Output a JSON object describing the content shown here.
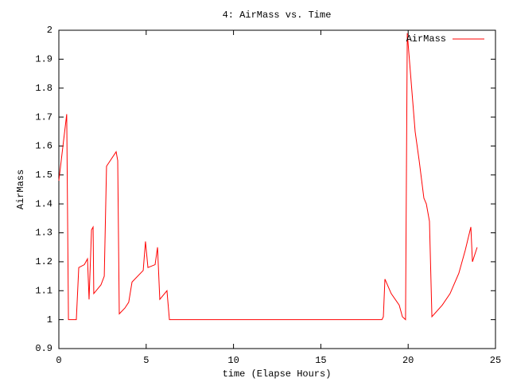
{
  "chart_data": {
    "type": "line",
    "title": "4: AirMass vs. Time",
    "xlabel": "time (Elapse Hours)",
    "ylabel": "AirMass",
    "x": [
      0,
      0.45,
      0.55,
      1.0,
      1.14,
      1.46,
      1.64,
      1.73,
      1.87,
      1.96,
      2.0,
      2.41,
      2.6,
      2.73,
      3.28,
      3.37,
      3.46,
      3.78,
      4.0,
      4.19,
      4.83,
      4.96,
      5.1,
      5.51,
      5.65,
      5.78,
      6.19,
      6.33,
      18.5,
      18.58,
      18.67,
      19.03,
      19.49,
      19.67,
      19.85,
      19.95,
      20.4,
      20.63,
      20.9,
      21.04,
      21.22,
      21.36,
      21.95,
      22.4,
      22.9,
      23.27,
      23.59,
      23.68,
      23.95
    ],
    "series": [
      {
        "name": "AirMass",
        "color": "#ff0000",
        "values": [
          1.48,
          1.71,
          1.0,
          1.0,
          1.18,
          1.19,
          1.21,
          1.07,
          1.31,
          1.32,
          1.09,
          1.12,
          1.15,
          1.53,
          1.58,
          1.55,
          1.02,
          1.04,
          1.06,
          1.13,
          1.17,
          1.27,
          1.18,
          1.19,
          1.25,
          1.07,
          1.1,
          1.0,
          1.0,
          1.01,
          1.14,
          1.09,
          1.05,
          1.01,
          1.0,
          1.99,
          1.65,
          1.55,
          1.42,
          1.4,
          1.34,
          1.01,
          1.05,
          1.09,
          1.16,
          1.24,
          1.32,
          1.2,
          1.25
        ]
      }
    ],
    "xlim": [
      0,
      25
    ],
    "xticks": [
      0,
      5,
      10,
      15,
      20,
      25
    ],
    "ylim": [
      0.9,
      2
    ],
    "yticks": [
      0.9,
      1,
      1.1,
      1.2,
      1.3,
      1.4,
      1.5,
      1.6,
      1.7,
      1.8,
      1.9,
      2
    ],
    "legend": "top-right",
    "grid": false
  }
}
